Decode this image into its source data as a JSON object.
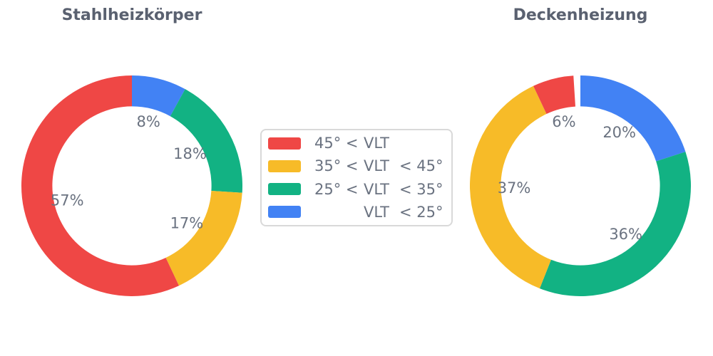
{
  "figure": {
    "background": "#FFFFFF"
  },
  "colors": {
    "title_text": "#5A6170",
    "label_text": "#6A7280",
    "legend_border": "#D9D9D9",
    "legend_background": "#FFFFFF"
  },
  "legend": {
    "position": "center-between-charts",
    "items": [
      {
        "label": "45° < VLT",
        "prefix": "45° <",
        "mid": "VLT",
        "suffix": "",
        "color": "#EF4745"
      },
      {
        "label": "35° < VLT < 45°",
        "prefix": "35° <",
        "mid": "VLT",
        "suffix": "< 45°",
        "color": "#F7BB28"
      },
      {
        "label": "25° < VLT < 35°",
        "prefix": "25° <",
        "mid": "VLT",
        "suffix": "< 35°",
        "color": "#12B283"
      },
      {
        "label": "VLT < 25°",
        "prefix": "",
        "mid": "VLT",
        "suffix": "< 25°",
        "color": "#4282F4"
      }
    ]
  },
  "chart_data": [
    {
      "type": "pie",
      "subtype": "donut",
      "title": "Stahlheizkörper",
      "categories": [
        "45° < VLT",
        "35° < VLT < 45°",
        "25° < VLT < 35°",
        "VLT < 25°"
      ],
      "values": [
        57,
        17,
        18,
        8
      ],
      "pct_labels": [
        "57%",
        "17%",
        "18%",
        "8%"
      ],
      "unit": "%",
      "colors": [
        "#EF4745",
        "#F7BB28",
        "#12B283",
        "#4282F4"
      ],
      "hole_ratio": 0.72,
      "start_angle_deg": 90,
      "direction": "counterclockwise",
      "label_distance": 0.6
    },
    {
      "type": "pie",
      "subtype": "donut",
      "title": "Deckenheizung",
      "categories": [
        "45° < VLT",
        "35° < VLT < 45°",
        "25° < VLT < 35°",
        "VLT < 25°"
      ],
      "values": [
        6,
        37,
        36,
        20
      ],
      "pct_labels": [
        "6%",
        "37%",
        "36%",
        "20%"
      ],
      "unit": "%",
      "colors": [
        "#EF4745",
        "#F7BB28",
        "#12B283",
        "#4282F4"
      ],
      "hole_ratio": 0.72,
      "start_angle_deg": 90,
      "direction": "counterclockwise",
      "label_distance": 0.6
    }
  ]
}
